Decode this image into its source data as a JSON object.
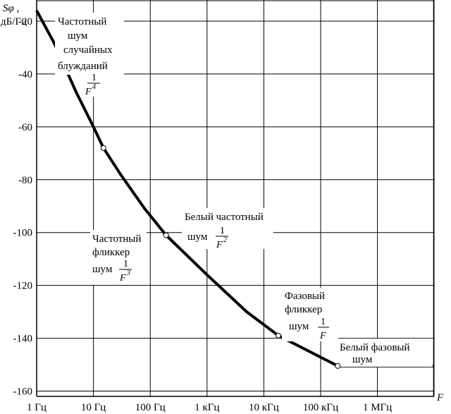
{
  "chart_data": {
    "type": "line",
    "ylabel_line1": "Sφ ,",
    "ylabel_line2": "дБ/Гц",
    "xlabel": "F",
    "x_scale": "log",
    "xlim_hz": [
      1,
      10000000
    ],
    "ylim": [
      -162,
      -12
    ],
    "grid": true,
    "x_ticks": [
      {
        "value": 1,
        "label": "1 Гц"
      },
      {
        "value": 10,
        "label": "10 Гц"
      },
      {
        "value": 100,
        "label": "100 Гц"
      },
      {
        "value": 1000,
        "label": "1 кГц"
      },
      {
        "value": 10000,
        "label": "10 кГц"
      },
      {
        "value": 100000,
        "label": "100 кГц"
      },
      {
        "value": 1000000,
        "label": "1 МГц"
      }
    ],
    "y_ticks": [
      {
        "value": -20,
        "label": "-20"
      },
      {
        "value": -40,
        "label": "-40"
      },
      {
        "value": -60,
        "label": "-60"
      },
      {
        "value": -80,
        "label": "-80"
      },
      {
        "value": -100,
        "label": "-100"
      },
      {
        "value": -120,
        "label": "-120"
      },
      {
        "value": -140,
        "label": "-140"
      },
      {
        "value": -160,
        "label": "-160"
      }
    ],
    "series": [
      {
        "points": [
          {
            "x": 1,
            "y": -16
          },
          {
            "x": 2,
            "y": -28
          },
          {
            "x": 5,
            "y": -47
          },
          {
            "x": 10,
            "y": -60
          },
          {
            "x": 15,
            "y": -68
          },
          {
            "x": 30,
            "y": -78
          },
          {
            "x": 80,
            "y": -91
          },
          {
            "x": 190,
            "y": -101
          },
          {
            "x": 1000,
            "y": -116
          },
          {
            "x": 5000,
            "y": -130
          },
          {
            "x": 18000,
            "y": -139
          },
          {
            "x": 200000,
            "y": -150.5
          },
          {
            "x": 10000000,
            "y": -150.5
          }
        ],
        "breakpoints": [
          {
            "x": 15,
            "y": -68
          },
          {
            "x": 190,
            "y": -101
          },
          {
            "x": 18000,
            "y": -139
          },
          {
            "x": 200000,
            "y": -150.5
          }
        ]
      }
    ],
    "annotations": [
      {
        "key": "f4",
        "lines": [
          "Частотный",
          "шум",
          "случайных",
          "блужданий"
        ],
        "num": "1",
        "den": "F",
        "exp": "4"
      },
      {
        "key": "f3",
        "lines": [
          "Частотный",
          "фликкер",
          "шум"
        ],
        "num": "1",
        "den": "F",
        "exp": "3"
      },
      {
        "key": "f2",
        "lines": [
          "Белый частотный",
          "шум"
        ],
        "num": "1",
        "den": "F",
        "exp": "2"
      },
      {
        "key": "f1",
        "lines": [
          "Фазовый",
          "фликкер",
          "шум"
        ],
        "num": "1",
        "den": "F",
        "exp": ""
      },
      {
        "key": "f0",
        "lines": [
          "Белый фазовый",
          "шум"
        ]
      }
    ]
  }
}
